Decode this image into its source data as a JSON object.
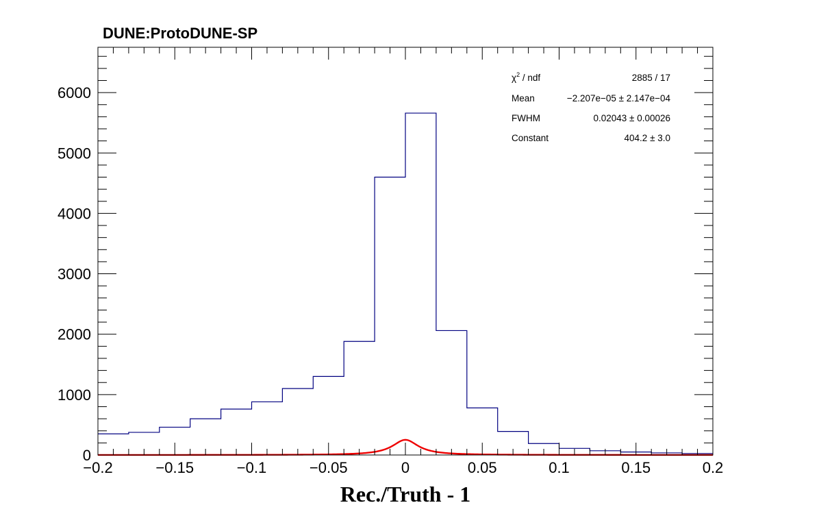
{
  "chart_data": {
    "type": "bar",
    "title": "DUNE:ProtoDUNE-SP",
    "xlabel": "Rec./Truth - 1",
    "ylabel": "",
    "xlim": [
      -0.2,
      0.2
    ],
    "ylim": [
      0,
      6750
    ],
    "x_ticks": [
      -0.2,
      -0.15,
      -0.1,
      -0.05,
      0,
      0.05,
      0.1,
      0.15,
      0.2
    ],
    "x_tick_labels": [
      "−0.2",
      "−0.15",
      "−0.1",
      "−0.05",
      "0",
      "0.05",
      "0.1",
      "0.15",
      "0.2"
    ],
    "y_ticks": [
      0,
      1000,
      2000,
      3000,
      4000,
      5000,
      6000
    ],
    "y_tick_labels": [
      "0",
      "1000",
      "2000",
      "3000",
      "4000",
      "5000",
      "6000"
    ],
    "grid": false,
    "series": [
      {
        "kind": "histogram",
        "color": "#000080",
        "bin_edges": [
          -0.2,
          -0.18,
          -0.16,
          -0.14,
          -0.12,
          -0.1,
          -0.08,
          -0.06,
          -0.04,
          -0.02,
          0,
          0.02,
          0.04,
          0.06,
          0.08,
          0.1,
          0.12,
          0.14,
          0.16,
          0.18,
          0.2
        ],
        "values": [
          350,
          375,
          460,
          600,
          760,
          880,
          1100,
          1300,
          1880,
          4600,
          5660,
          2060,
          780,
          390,
          190,
          110,
          70,
          50,
          35,
          25
        ]
      },
      {
        "kind": "fit-curve",
        "color": "#ee0000",
        "function": "lorentzian",
        "mean": -2.207e-05,
        "fwhm": 0.02043,
        "constant": 404.2
      }
    ],
    "stats_box": [
      {
        "label_main": "χ",
        "label_sup": "2",
        "label_rest": " / ndf",
        "value": "2885 / 17"
      },
      {
        "label_main": "Mean",
        "value": "−2.207e−05 ± 2.147e−04"
      },
      {
        "label_main": "FWHM",
        "value": "0.02043 ± 0.00026"
      },
      {
        "label_main": "Constant",
        "value": "404.2 ± 3.0"
      }
    ]
  }
}
